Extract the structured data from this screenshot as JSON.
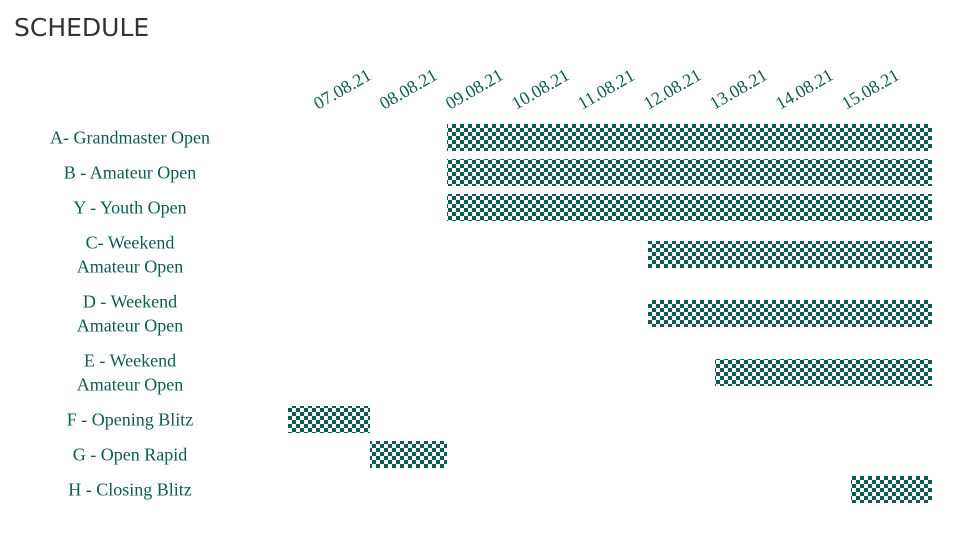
{
  "title": "SCHEDULE",
  "dates": [
    "07.08.21",
    "08.08.21",
    "09.08.21",
    "10.08.21",
    "11.08.21",
    "12.08.21",
    "13.08.21",
    "14.08.21",
    "15.08.21"
  ],
  "rows": [
    {
      "label": [
        "A- Grandmaster Open"
      ],
      "start": "09.08.21",
      "end": "15.08.21"
    },
    {
      "label": [
        "B - Amateur Open"
      ],
      "start": "09.08.21",
      "end": "15.08.21"
    },
    {
      "label": [
        "Y - Youth Open"
      ],
      "start": "09.08.21",
      "end": "15.08.21"
    },
    {
      "label": [
        "C- Weekend",
        "Amateur Open"
      ],
      "start": "12.08.21",
      "end": "15.08.21"
    },
    {
      "label": [
        "D - Weekend",
        "Amateur Open"
      ],
      "start": "12.08.21",
      "end": "15.08.21"
    },
    {
      "label": [
        "E - Weekend",
        "Amateur Open"
      ],
      "start": "13.08.21",
      "end": "15.08.21"
    },
    {
      "label": [
        "F - Opening Blitz"
      ],
      "start": "07.08.21",
      "end": "07.08.21"
    },
    {
      "label": [
        "G - Open Rapid"
      ],
      "start": "08.08.21",
      "end": "08.08.21"
    },
    {
      "label": [
        "H - Closing Blitz"
      ],
      "start": "15.08.21",
      "end": "15.08.21"
    }
  ]
}
